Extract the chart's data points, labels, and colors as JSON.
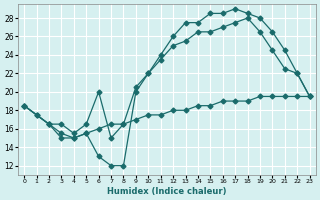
{
  "xlabel": "Humidex (Indice chaleur)",
  "bg_color": "#d6f0f0",
  "grid_color": "#ffffff",
  "line_color": "#1a6b6b",
  "xlim": [
    -0.5,
    23.5
  ],
  "ylim": [
    11.0,
    29.5
  ],
  "xticks": [
    0,
    1,
    2,
    3,
    4,
    5,
    6,
    7,
    8,
    9,
    10,
    11,
    12,
    13,
    14,
    15,
    16,
    17,
    18,
    19,
    20,
    21,
    22,
    23
  ],
  "yticks": [
    12,
    14,
    16,
    18,
    20,
    22,
    24,
    26,
    28
  ],
  "series1_x": [
    0,
    1,
    2,
    3,
    4,
    5,
    6,
    7,
    8,
    9,
    10,
    11,
    12,
    13,
    14,
    15,
    16,
    17,
    18,
    19,
    20,
    21,
    22,
    23
  ],
  "series1_y": [
    18.5,
    17.5,
    16.5,
    15.5,
    15.0,
    15.5,
    16.0,
    16.5,
    16.5,
    17.0,
    17.5,
    17.5,
    18.0,
    18.0,
    18.5,
    18.5,
    19.0,
    19.0,
    19.0,
    19.5,
    19.5,
    19.5,
    19.5,
    19.5
  ],
  "series2_x": [
    0,
    1,
    2,
    3,
    4,
    5,
    6,
    7,
    8,
    9,
    10,
    11,
    12,
    13,
    14,
    15,
    16,
    17,
    18,
    19,
    20,
    21,
    22,
    23
  ],
  "series2_y": [
    18.5,
    17.5,
    16.5,
    15.0,
    15.0,
    15.5,
    13.0,
    12.0,
    12.0,
    20.0,
    22.0,
    24.0,
    26.0,
    27.5,
    27.5,
    28.5,
    28.5,
    29.0,
    28.5,
    28.0,
    26.5,
    24.5,
    22.0,
    19.5
  ],
  "series3_x": [
    0,
    2,
    3,
    4,
    5,
    6,
    7,
    8,
    9,
    10,
    11,
    12,
    13,
    14,
    15,
    16,
    17,
    18,
    19,
    20,
    21,
    22,
    23
  ],
  "series3_y": [
    18.5,
    16.5,
    16.5,
    15.5,
    16.5,
    20.0,
    15.0,
    16.5,
    20.5,
    22.0,
    23.5,
    25.0,
    25.5,
    26.5,
    26.5,
    27.0,
    27.5,
    28.0,
    26.5,
    24.5,
    22.5,
    22.0,
    19.5
  ]
}
